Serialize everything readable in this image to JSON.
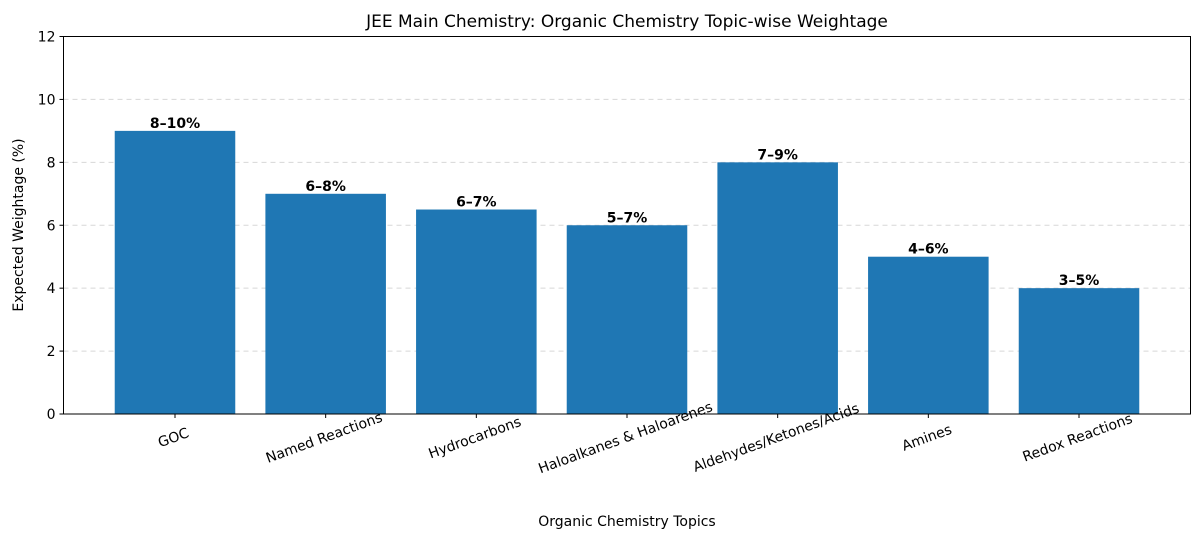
{
  "chart_data": {
    "type": "bar",
    "title": "JEE Main Chemistry: Organic Chemistry Topic-wise Weightage",
    "xlabel": "Organic Chemistry Topics",
    "ylabel": "Expected Weightage (%)",
    "categories": [
      "GOC",
      "Named Reactions",
      "Hydrocarbons",
      "Haloalkanes & Haloarenes",
      "Aldehydes/Ketones/Acids",
      "Amines",
      "Redox Reactions"
    ],
    "values": [
      9,
      7,
      6.5,
      6,
      8,
      5,
      4
    ],
    "data_labels": [
      "8–10%",
      "6–8%",
      "6–7%",
      "5–7%",
      "7–9%",
      "4–6%",
      "3–5%"
    ],
    "ylim": [
      0,
      12
    ],
    "yticks": [
      0,
      2,
      4,
      6,
      8,
      10,
      12
    ],
    "grid": "y dashed",
    "bar_color": "#1f77b4"
  }
}
